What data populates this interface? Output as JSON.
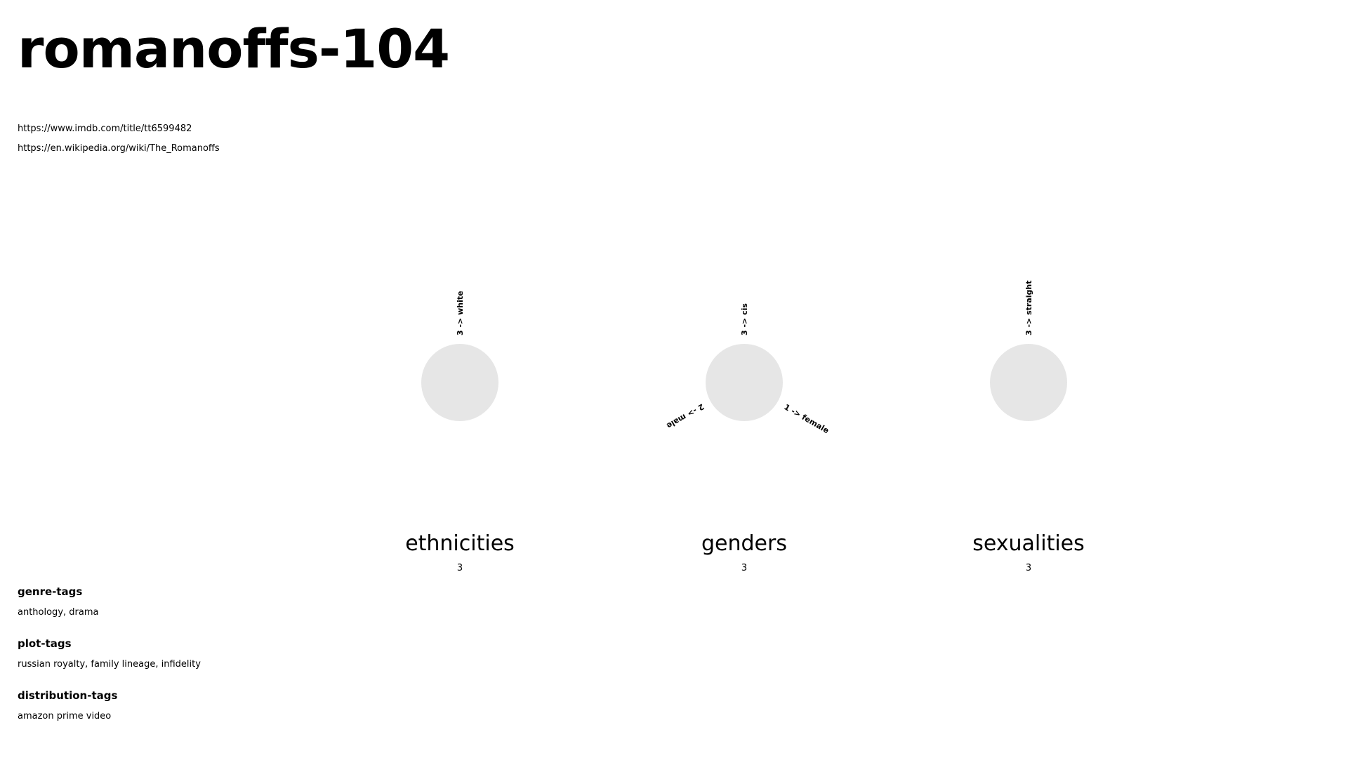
{
  "header": {
    "title": "romanoffs-104"
  },
  "links": [
    "https://www.imdb.com/title/tt6599482",
    "https://en.wikipedia.org/wiki/The_Romanoffs"
  ],
  "colors": {
    "circle_fill": "#e6e6e6",
    "text": "#000000",
    "background": "#ffffff"
  },
  "chart_data": [
    {
      "type": "other",
      "name": "ethnicities",
      "total": "3",
      "branches": [
        {
          "label": "3 ->  white",
          "count": 3,
          "category": "white",
          "angle_deg": 0
        }
      ]
    },
    {
      "type": "other",
      "name": "genders",
      "total": "3",
      "branches": [
        {
          "label": "3 ->  cis",
          "count": 3,
          "category": "cis",
          "angle_deg": 0
        },
        {
          "label": "1 ->  female",
          "count": 1,
          "category": "female",
          "angle_deg": 120
        },
        {
          "label": "2 ->  male",
          "count": 2,
          "category": "male",
          "angle_deg": 240
        }
      ]
    },
    {
      "type": "other",
      "name": "sexualities",
      "total": "3",
      "branches": [
        {
          "label": "3 ->  straight",
          "count": 3,
          "category": "straight",
          "angle_deg": 0
        }
      ]
    }
  ],
  "tags": [
    {
      "heading": "genre-tags",
      "values": "anthology, drama"
    },
    {
      "heading": "plot-tags",
      "values": "russian royalty, family lineage, infidelity"
    },
    {
      "heading": "distribution-tags",
      "values": "amazon prime video"
    }
  ]
}
